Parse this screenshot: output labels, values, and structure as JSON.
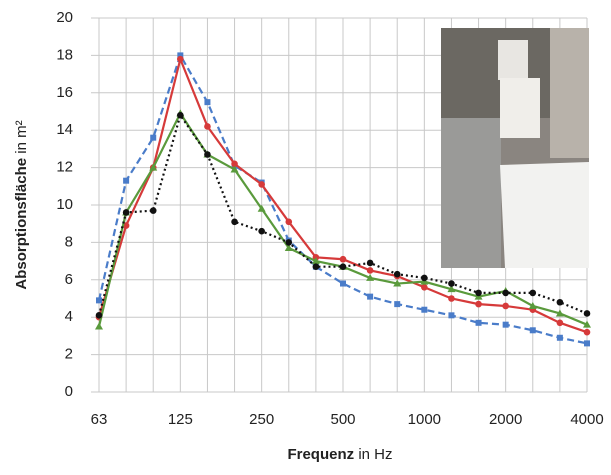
{
  "chart_data": {
    "type": "line",
    "ylabel": {
      "bold": "Absorptionsfläche",
      "text": "in m²"
    },
    "xlabel": {
      "bold": "Frequenz",
      "text": "in Hz"
    },
    "categories": [
      "63",
      null,
      null,
      "125",
      null,
      null,
      "250",
      null,
      null,
      "500",
      null,
      null,
      "1000",
      null,
      null,
      "2000",
      null,
      null,
      "4000"
    ],
    "ylim": [
      0,
      20
    ],
    "yticks": [
      0,
      2,
      4,
      6,
      8,
      10,
      12,
      14,
      16,
      18,
      20
    ],
    "grid": true,
    "series": [
      {
        "color": "#4a7cc9",
        "dash": "dashed",
        "marker": "square",
        "values": [
          4.9,
          11.3,
          13.6,
          18.0,
          15.5,
          12.1,
          11.2,
          8.1,
          6.7,
          5.8,
          5.1,
          4.7,
          4.4,
          4.1,
          3.7,
          3.6,
          3.3,
          2.9,
          2.6
        ]
      },
      {
        "color": "#d63a3a",
        "dash": "solid",
        "marker": "circle",
        "values": [
          4.0,
          8.9,
          12.0,
          17.8,
          14.2,
          12.2,
          11.1,
          9.1,
          7.2,
          7.1,
          6.5,
          6.2,
          5.6,
          5.0,
          4.7,
          4.6,
          4.4,
          3.7,
          3.2
        ]
      },
      {
        "color": "#5a9a3c",
        "dash": "solid",
        "marker": "triangle",
        "values": [
          3.5,
          9.6,
          12.0,
          14.9,
          12.7,
          11.9,
          9.8,
          7.7,
          7.0,
          6.7,
          6.1,
          5.8,
          5.9,
          5.5,
          5.1,
          5.4,
          4.6,
          4.2,
          3.6
        ]
      },
      {
        "color": "#111111",
        "dash": "dotted",
        "marker": "circle",
        "values": [
          4.1,
          9.6,
          9.7,
          14.8,
          12.7,
          9.1,
          8.6,
          8.0,
          6.7,
          6.7,
          6.9,
          6.3,
          6.1,
          5.8,
          5.3,
          5.3,
          5.3,
          4.8,
          4.2
        ]
      }
    ]
  }
}
